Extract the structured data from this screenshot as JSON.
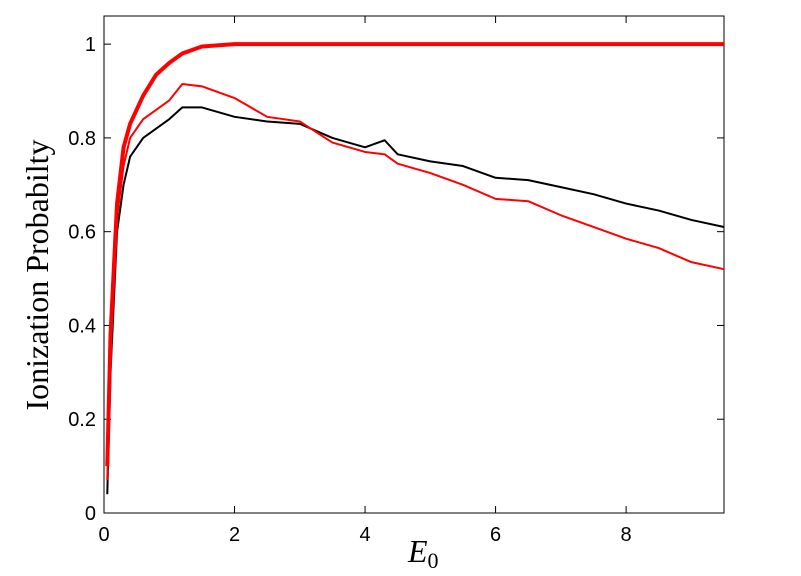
{
  "chart_data": {
    "type": "line",
    "ylabel": "Ionization Probabilty",
    "xlabel": "E",
    "xlabel_subscript": "0",
    "x": [
      0.05,
      0.1,
      0.2,
      0.3,
      0.4,
      0.5,
      0.6,
      0.8,
      1.0,
      1.2,
      1.5,
      2,
      2.5,
      3,
      3.5,
      4,
      4.3,
      4.5,
      5,
      5.5,
      6,
      6.5,
      7,
      7.5,
      8,
      8.5,
      9,
      9.5
    ],
    "series": [
      {
        "color": "#000000",
        "width": 2,
        "values": [
          0.04,
          0.3,
          0.6,
          0.7,
          0.76,
          0.78,
          0.8,
          0.82,
          0.84,
          0.865,
          0.865,
          0.845,
          0.835,
          0.83,
          0.8,
          0.78,
          0.795,
          0.765,
          0.75,
          0.74,
          0.715,
          0.71,
          0.695,
          0.68,
          0.66,
          0.645,
          0.625,
          0.61
        ]
      },
      {
        "color": "#ff0000",
        "width": 2,
        "values": [
          0.07,
          0.35,
          0.63,
          0.74,
          0.8,
          0.82,
          0.84,
          0.86,
          0.88,
          0.915,
          0.91,
          0.885,
          0.845,
          0.835,
          0.79,
          0.77,
          0.765,
          0.745,
          0.725,
          0.7,
          0.67,
          0.665,
          0.635,
          0.61,
          0.585,
          0.565,
          0.535,
          0.52
        ]
      },
      {
        "color": "#ff0000",
        "width": 4,
        "values": [
          0.1,
          0.38,
          0.66,
          0.78,
          0.83,
          0.86,
          0.89,
          0.935,
          0.96,
          0.98,
          0.995,
          1,
          1,
          1,
          1,
          1,
          1,
          1,
          1,
          1,
          1,
          1,
          1,
          1,
          1,
          1,
          1,
          1
        ]
      }
    ],
    "xlim": [
      0,
      9.5
    ],
    "ylim": [
      0,
      1.06
    ],
    "xticks": [
      0,
      2,
      4,
      6,
      8
    ],
    "yticks": [
      0,
      0.2,
      0.4,
      0.6,
      0.8,
      1
    ]
  }
}
